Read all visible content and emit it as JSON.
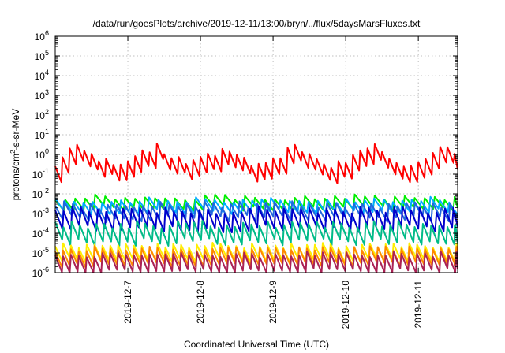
{
  "chart_data": {
    "type": "line",
    "title": "/data/run/goesPlots/archive/2019-12-11/13:00/bryn/../flux/5daysMarsFluxes.txt",
    "xlabel": "Coordinated Universal Time (UTC)",
    "ylabel_main": "protons/cm",
    "ylabel_sup": "2",
    "ylabel_rest": "-s-sr-MeV",
    "yscale": "log",
    "ylim_exp": [
      -6,
      6
    ],
    "y_ticks": [
      {
        "base": "10",
        "exp": "-6"
      },
      {
        "base": "10",
        "exp": "-5"
      },
      {
        "base": "10",
        "exp": "-4"
      },
      {
        "base": "10",
        "exp": "-3"
      },
      {
        "base": "10",
        "exp": "-2"
      },
      {
        "base": "10",
        "exp": "-1"
      },
      {
        "base": "10",
        "exp": "0"
      },
      {
        "base": "10",
        "exp": "1"
      },
      {
        "base": "10",
        "exp": "2"
      },
      {
        "base": "10",
        "exp": "3"
      },
      {
        "base": "10",
        "exp": "4"
      },
      {
        "base": "10",
        "exp": "5"
      },
      {
        "base": "10",
        "exp": "6"
      }
    ],
    "xlim": [
      "2019-12-06 00:00",
      "2019-12-11 13:00"
    ],
    "x_tick_labels": [
      "2019-12-7",
      "2019-12-8",
      "2019-12-9",
      "2019-12-10",
      "2019-12-11"
    ],
    "x_tick_dates": [
      "2019-12-07",
      "2019-12-08",
      "2019-12-09",
      "2019-12-10",
      "2019-12-11"
    ],
    "grid": true,
    "series": [
      {
        "color": "#ff0000",
        "base": -0.5,
        "amp": 0.8,
        "jitter": 0.25,
        "period_h": 2.4
      },
      {
        "color": "#00ee00",
        "base": -2.45,
        "amp": 0.55,
        "jitter": 0.15,
        "period_h": 3.3
      },
      {
        "color": "#00aaff",
        "base": -2.6,
        "amp": 0.6,
        "jitter": 0.15,
        "period_h": 3.1
      },
      {
        "color": "#2266dd",
        "base": -2.9,
        "amp": 0.7,
        "jitter": 0.2,
        "period_h": 2.9
      },
      {
        "color": "#0000cc",
        "base": -3.3,
        "amp": 0.95,
        "jitter": 0.2,
        "period_h": 2.8
      },
      {
        "color": "#00bb88",
        "base": -4.0,
        "amp": 0.9,
        "jitter": 0.2,
        "period_h": 2.7
      },
      {
        "color": "#ffee00",
        "base": -5.0,
        "amp": 0.75,
        "jitter": 0.15,
        "period_h": 2.6
      },
      {
        "color": "#ff8800",
        "base": -5.2,
        "amp": 0.8,
        "jitter": 0.15,
        "period_h": 2.6
      },
      {
        "color": "#aa2255",
        "base": -5.5,
        "amp": 0.85,
        "jitter": 0.15,
        "period_h": 2.6
      }
    ]
  }
}
